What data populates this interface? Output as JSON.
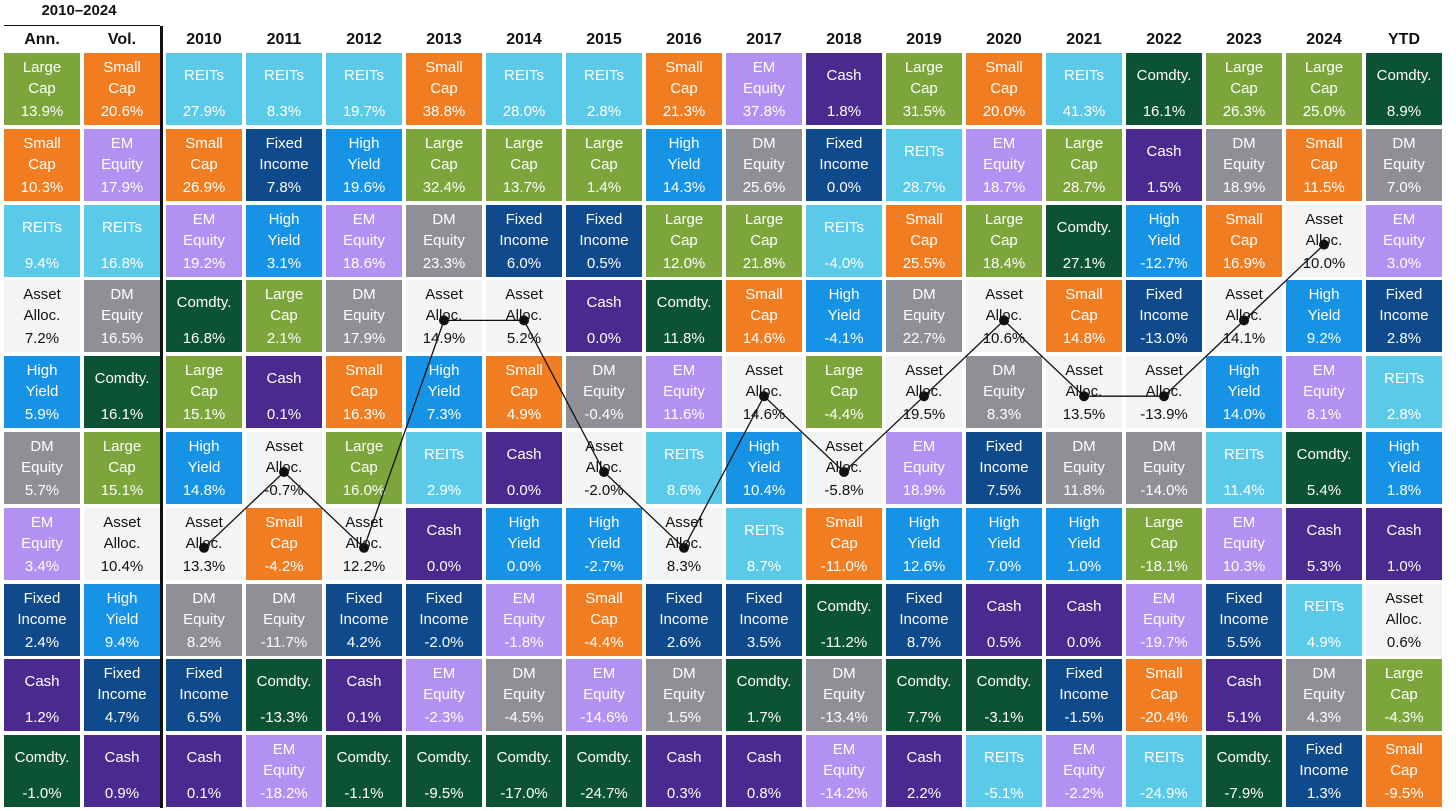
{
  "header": {
    "period": "2010–2024",
    "summary_columns": [
      "Ann.",
      "Vol."
    ],
    "year_columns": [
      "2010",
      "2011",
      "2012",
      "2013",
      "2014",
      "2015",
      "2016",
      "2017",
      "2018",
      "2019",
      "2020",
      "2021",
      "2022",
      "2023",
      "2024",
      "YTD"
    ]
  },
  "asset_classes": {
    "LC": {
      "label": "Large\nCap",
      "color": "#7ca53b",
      "text": "#ffffff"
    },
    "SC": {
      "label": "Small\nCap",
      "color": "#f07d22",
      "text": "#ffffff"
    },
    "RE": {
      "label": "REITs",
      "color": "#5bc9e8",
      "text": "#ffffff"
    },
    "AA": {
      "label": "Asset\nAlloc.",
      "color": "#f3f4f6",
      "text": "#111111"
    },
    "HY": {
      "label": "High\nYield",
      "color": "#1793e6",
      "text": "#ffffff"
    },
    "DM": {
      "label": "DM\nEquity",
      "color": "#8e9095",
      "text": "#ffffff"
    },
    "EM": {
      "label": "EM\nEquity",
      "color": "#b291f2",
      "text": "#ffffff"
    },
    "FI": {
      "label": "Fixed\nIncome",
      "color": "#0f4a8c",
      "text": "#ffffff"
    },
    "CA": {
      "label": "Cash",
      "color": "#4b2a8f",
      "text": "#ffffff"
    },
    "CO": {
      "label": "Comdty.",
      "color": "#0c5234",
      "text": "#ffffff"
    }
  },
  "chart_data": {
    "type": "table",
    "title": "2010–2024",
    "columns": [
      "Ann.",
      "Vol.",
      "2010",
      "2011",
      "2012",
      "2013",
      "2014",
      "2015",
      "2016",
      "2017",
      "2018",
      "2019",
      "2020",
      "2021",
      "2022",
      "2023",
      "2024",
      "YTD"
    ],
    "cells": [
      [
        [
          "LC",
          "13.9%"
        ],
        [
          "SC",
          "10.3%"
        ],
        [
          "RE",
          "9.4%"
        ],
        [
          "AA",
          "7.2%"
        ],
        [
          "HY",
          "5.9%"
        ],
        [
          "DM",
          "5.7%"
        ],
        [
          "EM",
          "3.4%"
        ],
        [
          "FI",
          "2.4%"
        ],
        [
          "CA",
          "1.2%"
        ],
        [
          "CO",
          "-1.0%"
        ]
      ],
      [
        [
          "SC",
          "20.6%"
        ],
        [
          "EM",
          "17.9%"
        ],
        [
          "RE",
          "16.8%"
        ],
        [
          "DM",
          "16.5%"
        ],
        [
          "CO",
          "16.1%"
        ],
        [
          "LC",
          "15.1%"
        ],
        [
          "AA",
          "10.4%"
        ],
        [
          "HY",
          "9.4%"
        ],
        [
          "FI",
          "4.7%"
        ],
        [
          "CA",
          "0.9%"
        ]
      ],
      [
        [
          "RE",
          "27.9%"
        ],
        [
          "SC",
          "26.9%"
        ],
        [
          "EM",
          "19.2%"
        ],
        [
          "CO",
          "16.8%"
        ],
        [
          "LC",
          "15.1%"
        ],
        [
          "HY",
          "14.8%"
        ],
        [
          "AA",
          "13.3%"
        ],
        [
          "DM",
          "8.2%"
        ],
        [
          "FI",
          "6.5%"
        ],
        [
          "CA",
          "0.1%"
        ]
      ],
      [
        [
          "RE",
          "8.3%"
        ],
        [
          "FI",
          "7.8%"
        ],
        [
          "HY",
          "3.1%"
        ],
        [
          "LC",
          "2.1%"
        ],
        [
          "CA",
          "0.1%"
        ],
        [
          "AA",
          "-0.7%"
        ],
        [
          "SC",
          "-4.2%"
        ],
        [
          "DM",
          "-11.7%"
        ],
        [
          "CO",
          "-13.3%"
        ],
        [
          "EM",
          "-18.2%"
        ]
      ],
      [
        [
          "RE",
          "19.7%"
        ],
        [
          "HY",
          "19.6%"
        ],
        [
          "EM",
          "18.6%"
        ],
        [
          "DM",
          "17.9%"
        ],
        [
          "SC",
          "16.3%"
        ],
        [
          "LC",
          "16.0%"
        ],
        [
          "AA",
          "12.2%"
        ],
        [
          "FI",
          "4.2%"
        ],
        [
          "CA",
          "0.1%"
        ],
        [
          "CO",
          "-1.1%"
        ]
      ],
      [
        [
          "SC",
          "38.8%"
        ],
        [
          "LC",
          "32.4%"
        ],
        [
          "DM",
          "23.3%"
        ],
        [
          "AA",
          "14.9%"
        ],
        [
          "HY",
          "7.3%"
        ],
        [
          "RE",
          "2.9%"
        ],
        [
          "CA",
          "0.0%"
        ],
        [
          "FI",
          "-2.0%"
        ],
        [
          "EM",
          "-2.3%"
        ],
        [
          "CO",
          "-9.5%"
        ]
      ],
      [
        [
          "RE",
          "28.0%"
        ],
        [
          "LC",
          "13.7%"
        ],
        [
          "FI",
          "6.0%"
        ],
        [
          "AA",
          "5.2%"
        ],
        [
          "SC",
          "4.9%"
        ],
        [
          "CA",
          "0.0%"
        ],
        [
          "HY",
          "0.0%"
        ],
        [
          "EM",
          "-1.8%"
        ],
        [
          "DM",
          "-4.5%"
        ],
        [
          "CO",
          "-17.0%"
        ]
      ],
      [
        [
          "RE",
          "2.8%"
        ],
        [
          "LC",
          "1.4%"
        ],
        [
          "FI",
          "0.5%"
        ],
        [
          "CA",
          "0.0%"
        ],
        [
          "DM",
          "-0.4%"
        ],
        [
          "AA",
          "-2.0%"
        ],
        [
          "HY",
          "-2.7%"
        ],
        [
          "SC",
          "-4.4%"
        ],
        [
          "EM",
          "-14.6%"
        ],
        [
          "CO",
          "-24.7%"
        ]
      ],
      [
        [
          "SC",
          "21.3%"
        ],
        [
          "HY",
          "14.3%"
        ],
        [
          "LC",
          "12.0%"
        ],
        [
          "CO",
          "11.8%"
        ],
        [
          "EM",
          "11.6%"
        ],
        [
          "RE",
          "8.6%"
        ],
        [
          "AA",
          "8.3%"
        ],
        [
          "FI",
          "2.6%"
        ],
        [
          "DM",
          "1.5%"
        ],
        [
          "CA",
          "0.3%"
        ]
      ],
      [
        [
          "EM",
          "37.8%"
        ],
        [
          "DM",
          "25.6%"
        ],
        [
          "LC",
          "21.8%"
        ],
        [
          "SC",
          "14.6%"
        ],
        [
          "AA",
          "14.6%"
        ],
        [
          "HY",
          "10.4%"
        ],
        [
          "RE",
          "8.7%"
        ],
        [
          "FI",
          "3.5%"
        ],
        [
          "CO",
          "1.7%"
        ],
        [
          "CA",
          "0.8%"
        ]
      ],
      [
        [
          "CA",
          "1.8%"
        ],
        [
          "FI",
          "0.0%"
        ],
        [
          "RE",
          "-4.0%"
        ],
        [
          "HY",
          "-4.1%"
        ],
        [
          "LC",
          "-4.4%"
        ],
        [
          "AA",
          "-5.8%"
        ],
        [
          "SC",
          "-11.0%"
        ],
        [
          "CO",
          "-11.2%"
        ],
        [
          "DM",
          "-13.4%"
        ],
        [
          "EM",
          "-14.2%"
        ]
      ],
      [
        [
          "LC",
          "31.5%"
        ],
        [
          "RE",
          "28.7%"
        ],
        [
          "SC",
          "25.5%"
        ],
        [
          "DM",
          "22.7%"
        ],
        [
          "AA",
          "19.5%"
        ],
        [
          "EM",
          "18.9%"
        ],
        [
          "HY",
          "12.6%"
        ],
        [
          "FI",
          "8.7%"
        ],
        [
          "CO",
          "7.7%"
        ],
        [
          "CA",
          "2.2%"
        ]
      ],
      [
        [
          "SC",
          "20.0%"
        ],
        [
          "EM",
          "18.7%"
        ],
        [
          "LC",
          "18.4%"
        ],
        [
          "AA",
          "10.6%"
        ],
        [
          "DM",
          "8.3%"
        ],
        [
          "FI",
          "7.5%"
        ],
        [
          "HY",
          "7.0%"
        ],
        [
          "CA",
          "0.5%"
        ],
        [
          "CO",
          "-3.1%"
        ],
        [
          "RE",
          "-5.1%"
        ]
      ],
      [
        [
          "RE",
          "41.3%"
        ],
        [
          "LC",
          "28.7%"
        ],
        [
          "CO",
          "27.1%"
        ],
        [
          "SC",
          "14.8%"
        ],
        [
          "AA",
          "13.5%"
        ],
        [
          "DM",
          "11.8%"
        ],
        [
          "HY",
          "1.0%"
        ],
        [
          "CA",
          "0.0%"
        ],
        [
          "FI",
          "-1.5%"
        ],
        [
          "EM",
          "-2.2%"
        ]
      ],
      [
        [
          "CO",
          "16.1%"
        ],
        [
          "CA",
          "1.5%"
        ],
        [
          "HY",
          "-12.7%"
        ],
        [
          "FI",
          "-13.0%"
        ],
        [
          "AA",
          "-13.9%"
        ],
        [
          "DM",
          "-14.0%"
        ],
        [
          "LC",
          "-18.1%"
        ],
        [
          "EM",
          "-19.7%"
        ],
        [
          "SC",
          "-20.4%"
        ],
        [
          "RE",
          "-24.9%"
        ]
      ],
      [
        [
          "LC",
          "26.3%"
        ],
        [
          "DM",
          "18.9%"
        ],
        [
          "SC",
          "16.9%"
        ],
        [
          "AA",
          "14.1%"
        ],
        [
          "HY",
          "14.0%"
        ],
        [
          "RE",
          "11.4%"
        ],
        [
          "EM",
          "10.3%"
        ],
        [
          "FI",
          "5.5%"
        ],
        [
          "CA",
          "5.1%"
        ],
        [
          "CO",
          "-7.9%"
        ]
      ],
      [
        [
          "LC",
          "25.0%"
        ],
        [
          "SC",
          "11.5%"
        ],
        [
          "AA",
          "10.0%"
        ],
        [
          "HY",
          "9.2%"
        ],
        [
          "EM",
          "8.1%"
        ],
        [
          "CO",
          "5.4%"
        ],
        [
          "CA",
          "5.3%"
        ],
        [
          "RE",
          "4.9%"
        ],
        [
          "DM",
          "4.3%"
        ],
        [
          "FI",
          "1.3%"
        ]
      ],
      [
        [
          "CO",
          "8.9%"
        ],
        [
          "DM",
          "7.0%"
        ],
        [
          "EM",
          "3.0%"
        ],
        [
          "FI",
          "2.8%"
        ],
        [
          "RE",
          "2.8%"
        ],
        [
          "HY",
          "1.8%"
        ],
        [
          "CA",
          "1.0%"
        ],
        [
          "AA",
          "0.6%"
        ],
        [
          "LC",
          "-4.3%"
        ],
        [
          "SC",
          "-9.5%"
        ]
      ]
    ],
    "highlight_series": "AA",
    "line_connects_columns": [
      "2010",
      "2011",
      "2012",
      "2013",
      "2014",
      "2015",
      "2016",
      "2017",
      "2018",
      "2019",
      "2020",
      "2021",
      "2022",
      "2023",
      "2024"
    ]
  }
}
